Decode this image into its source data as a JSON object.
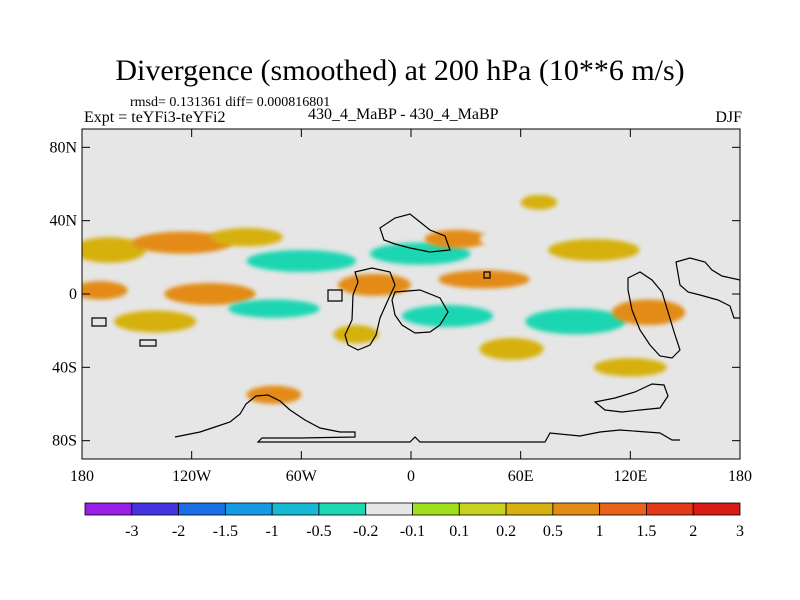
{
  "header": {
    "title": "Divergence (smoothed) at 200 hPa (10**6 m/s)",
    "stats": "rmsd= 0.131361 diff= 0.000816801",
    "experiment": "Expt = teYFi3-teYFi2",
    "case_label": "430_4_MaBP - 430_4_MaBP",
    "season": "DJF"
  },
  "colors": {
    "background_field": "#e6e6e6",
    "contour_line": "#000000",
    "palette": [
      "#9a1fe6",
      "#4434e0",
      "#1a6fe8",
      "#1599e0",
      "#17b9d6",
      "#1dd6b2",
      "#e6e6e6",
      "#9ee01a",
      "#c7d11e",
      "#d6b10f",
      "#e38b13",
      "#e8621a",
      "#e23a16",
      "#d91a12"
    ]
  },
  "chart_data": {
    "type": "heatmap",
    "title": "Divergence (smoothed) at 200 hPa (10**6 m/s)",
    "x_label": "",
    "y_label": "",
    "x_range": [
      -180,
      180
    ],
    "y_range": [
      -90,
      90
    ],
    "x_ticks": [
      -180,
      -120,
      -60,
      0,
      60,
      120,
      180
    ],
    "x_tick_labels": [
      "180",
      "120W",
      "60W",
      "0",
      "60E",
      "120E",
      "180"
    ],
    "y_ticks": [
      80,
      40,
      0,
      -40,
      -80
    ],
    "y_tick_labels": [
      "80N",
      "40N",
      "0",
      "40S",
      "80S"
    ],
    "colorbar": {
      "levels": [
        "-3",
        "-2",
        "-1.5",
        "-1",
        "-0.5",
        "-0.2",
        "-0.1",
        "0.1",
        "0.2",
        "0.5",
        "1",
        "1.5",
        "2",
        "3"
      ],
      "bins": 14
    },
    "anomaly_patches": [
      {
        "lon": -165,
        "lat": 24,
        "lon_w": 40,
        "lat_h": 14,
        "level": "0.2"
      },
      {
        "lon": -125,
        "lat": 28,
        "lon_w": 55,
        "lat_h": 12,
        "level": "0.5"
      },
      {
        "lon": -90,
        "lat": 31,
        "lon_w": 40,
        "lat_h": 10,
        "level": "0.2"
      },
      {
        "lon": -60,
        "lat": 18,
        "lon_w": 60,
        "lat_h": 12,
        "level": "-0.5"
      },
      {
        "lon": -135,
        "lat": 13,
        "lon_w": 40,
        "lat_h": 10,
        "level": "-0.2"
      },
      {
        "lon": -170,
        "lat": 2,
        "lon_w": 30,
        "lat_h": 10,
        "level": "0.5"
      },
      {
        "lon": -110,
        "lat": 0,
        "lon_w": 50,
        "lat_h": 12,
        "level": "0.5"
      },
      {
        "lon": -75,
        "lat": -8,
        "lon_w": 50,
        "lat_h": 10,
        "level": "-0.5"
      },
      {
        "lon": -140,
        "lat": -15,
        "lon_w": 45,
        "lat_h": 12,
        "level": "0.2"
      },
      {
        "lon": -160,
        "lat": -30,
        "lon_w": 30,
        "lat_h": 10,
        "level": "-0.2"
      },
      {
        "lon": -70,
        "lat": -30,
        "lon_w": 30,
        "lat_h": 9,
        "level": "-0.2"
      },
      {
        "lon": -30,
        "lat": -22,
        "lon_w": 25,
        "lat_h": 10,
        "level": "0.2"
      },
      {
        "lon": -20,
        "lat": 5,
        "lon_w": 40,
        "lat_h": 12,
        "level": "0.5"
      },
      {
        "lon": 5,
        "lat": 22,
        "lon_w": 55,
        "lat_h": 12,
        "level": "-0.5"
      },
      {
        "lon": 25,
        "lat": 30,
        "lon_w": 35,
        "lat_h": 10,
        "level": "0.5"
      },
      {
        "lon": 60,
        "lat": 30,
        "lon_w": 45,
        "lat_h": 12,
        "level": "-0.2"
      },
      {
        "lon": 100,
        "lat": 24,
        "lon_w": 50,
        "lat_h": 12,
        "level": "0.2"
      },
      {
        "lon": 160,
        "lat": 25,
        "lon_w": 40,
        "lat_h": 14,
        "level": "-0.2"
      },
      {
        "lon": 40,
        "lat": 8,
        "lon_w": 50,
        "lat_h": 10,
        "level": "0.5"
      },
      {
        "lon": 20,
        "lat": -12,
        "lon_w": 50,
        "lat_h": 12,
        "level": "-0.5"
      },
      {
        "lon": 90,
        "lat": -15,
        "lon_w": 55,
        "lat_h": 14,
        "level": "-0.5"
      },
      {
        "lon": 55,
        "lat": -30,
        "lon_w": 35,
        "lat_h": 12,
        "level": "0.2"
      },
      {
        "lon": 130,
        "lat": -10,
        "lon_w": 40,
        "lat_h": 14,
        "level": "0.5"
      },
      {
        "lon": 165,
        "lat": -5,
        "lon_w": 30,
        "lat_h": 12,
        "level": "-0.2"
      },
      {
        "lon": 120,
        "lat": -40,
        "lon_w": 40,
        "lat_h": 10,
        "level": "0.2"
      },
      {
        "lon": 40,
        "lat": 58,
        "lon_w": 25,
        "lat_h": 8,
        "level": "-0.2"
      },
      {
        "lon": 70,
        "lat": 50,
        "lon_w": 20,
        "lat_h": 8,
        "level": "0.2"
      },
      {
        "lon": 150,
        "lat": 45,
        "lon_w": 25,
        "lat_h": 10,
        "level": "-0.2"
      },
      {
        "lon": -75,
        "lat": -55,
        "lon_w": 30,
        "lat_h": 10,
        "level": "0.5"
      },
      {
        "lon": -145,
        "lat": -68,
        "lon_w": 30,
        "lat_h": 6,
        "level": "-0.2"
      }
    ],
    "coastlines": "outline drawn in black"
  }
}
